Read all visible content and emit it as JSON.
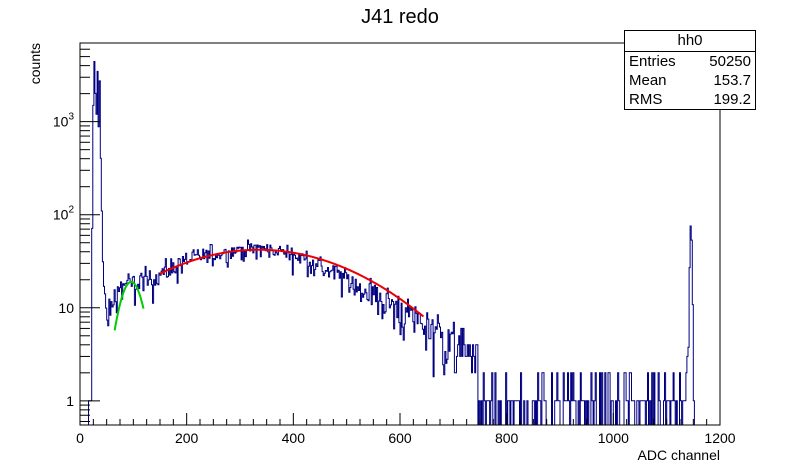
{
  "chart_data": {
    "type": "histogram",
    "title": "J41 redo",
    "xlabel": "ADC channel",
    "ylabel": "counts",
    "xlim": [
      0,
      1200
    ],
    "ylim": [
      0.55,
      7000
    ],
    "yscale": "log",
    "x_ticks": [
      {
        "value": 0,
        "label": "0"
      },
      {
        "value": 200,
        "label": "200"
      },
      {
        "value": 400,
        "label": "400"
      },
      {
        "value": 600,
        "label": "600"
      },
      {
        "value": 800,
        "label": "800"
      },
      {
        "value": 1000,
        "label": "1000"
      },
      {
        "value": 1200,
        "label": "1200"
      }
    ],
    "y_ticks": [
      {
        "value": 1,
        "label": "1",
        "exp": ""
      },
      {
        "value": 10,
        "label": "10",
        "exp": ""
      },
      {
        "value": 100,
        "label": "10",
        "exp": "2"
      },
      {
        "value": 1000,
        "label": "10",
        "exp": "3"
      }
    ],
    "histogram": {
      "name": "hh0",
      "color": "#000080",
      "bin_width": 2,
      "shape": [
        [
          15,
          0
        ],
        [
          16,
          0.6
        ],
        [
          18,
          0.6
        ],
        [
          19,
          1.8
        ],
        [
          21,
          1.8
        ],
        [
          23,
          70
        ],
        [
          25,
          1500
        ],
        [
          27,
          4400
        ],
        [
          29,
          2000
        ],
        [
          31,
          1200
        ],
        [
          33,
          3500
        ],
        [
          35,
          900
        ],
        [
          37,
          2800
        ],
        [
          39,
          400
        ],
        [
          41,
          110
        ],
        [
          43,
          30
        ],
        [
          45,
          15
        ],
        [
          48,
          10
        ],
        [
          52,
          7
        ],
        [
          56,
          8.5
        ],
        [
          62,
          12
        ],
        [
          70,
          15
        ],
        [
          80,
          17
        ],
        [
          92,
          18
        ],
        [
          100,
          17
        ],
        [
          115,
          19
        ],
        [
          125,
          20
        ],
        [
          150,
          23
        ],
        [
          200,
          32
        ],
        [
          250,
          38
        ],
        [
          300,
          42
        ],
        [
          340,
          43
        ],
        [
          380,
          40
        ],
        [
          420,
          34
        ],
        [
          460,
          26
        ],
        [
          500,
          20
        ],
        [
          540,
          15
        ],
        [
          580,
          11
        ],
        [
          620,
          8
        ],
        [
          650,
          6.5
        ],
        [
          680,
          5
        ],
        [
          700,
          4
        ],
        [
          730,
          3
        ],
        [
          760,
          2.2
        ],
        [
          800,
          1.8
        ],
        [
          850,
          1.5
        ],
        [
          900,
          1.3
        ],
        [
          950,
          1.2
        ],
        [
          1000,
          1.1
        ],
        [
          1050,
          1.05
        ],
        [
          1100,
          1.05
        ],
        [
          1134,
          1.1
        ],
        [
          1140,
          3
        ],
        [
          1143,
          20
        ],
        [
          1146,
          110
        ],
        [
          1149,
          10
        ],
        [
          1151,
          0.6
        ]
      ]
    },
    "fits": [
      {
        "name": "fit-low",
        "color": "#00cc00",
        "x_range": [
          65,
          120
        ],
        "peak_x": 96,
        "peak_y": 19,
        "width": 20
      },
      {
        "name": "fit-main",
        "color": "#ee0000",
        "x_range": [
          150,
          645
        ],
        "peak_x": 335,
        "peak_y": 42,
        "width": 170
      }
    ],
    "stats_box": {
      "name": "hh0",
      "entries_label": "Entries",
      "entries": "50250",
      "mean_label": "Mean",
      "mean": "153.7",
      "rms_label": "RMS",
      "rms": "199.2"
    }
  }
}
